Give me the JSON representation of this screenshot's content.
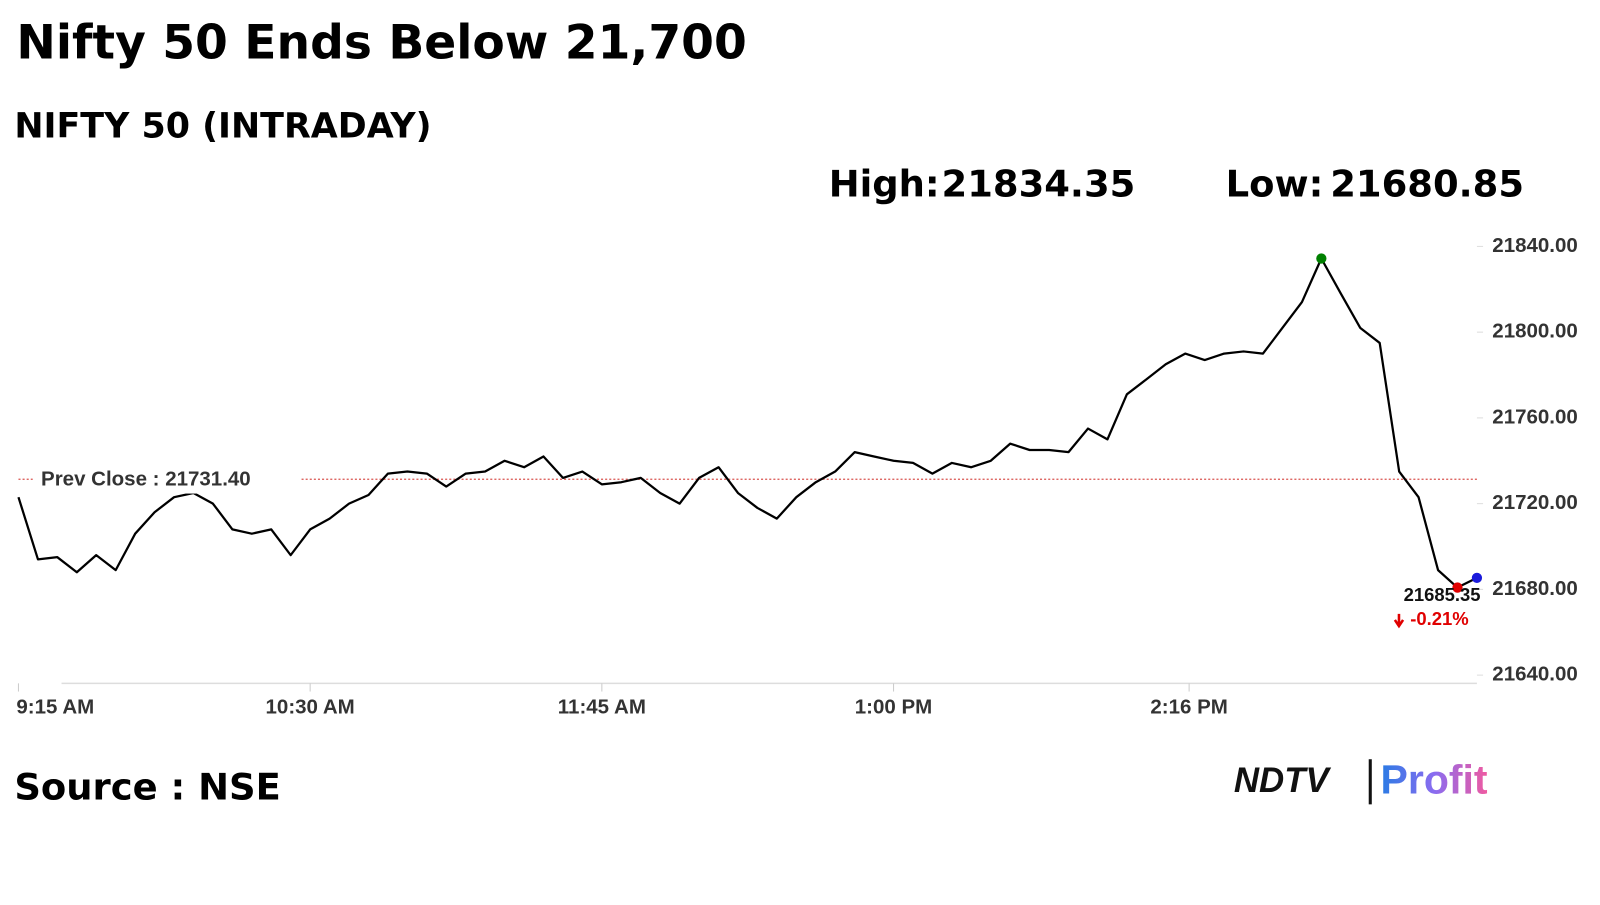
{
  "chart_data": {
    "type": "line",
    "title": "Nifty 50 Ends Below 21,700",
    "subtitle": "NIFTY 50 (INTRADAY)",
    "high_label": "High:",
    "high": 21834.35,
    "low_label": "Low:",
    "low": 21680.85,
    "color": "#000000",
    "high_color": "#008000",
    "low_color": "#e00000",
    "last_color": "#1a1adb",
    "prev_close": {
      "value": 21731.4,
      "label": "Prev Close : 21731.40"
    },
    "prev_close_color": "#d9534f",
    "change": {
      "value": -0.21,
      "label": "-0.21%"
    },
    "change_color": "#e00000",
    "x": [
      "9:15 AM",
      "9:20 AM",
      "9:25 AM",
      "9:30 AM",
      "9:35 AM",
      "9:40 AM",
      "9:45 AM",
      "9:50 AM",
      "9:55 AM",
      "10:00 AM",
      "10:05 AM",
      "10:10 AM",
      "10:15 AM",
      "10:20 AM",
      "10:25 AM",
      "10:30 AM",
      "10:35 AM",
      "10:40 AM",
      "10:45 AM",
      "10:50 AM",
      "10:55 AM",
      "11:00 AM",
      "11:05 AM",
      "11:10 AM",
      "11:15 AM",
      "11:20 AM",
      "11:25 AM",
      "11:30 AM",
      "11:35 AM",
      "11:40 AM",
      "11:45 AM",
      "11:50 AM",
      "11:55 AM",
      "12:00 PM",
      "12:05 PM",
      "12:10 PM",
      "12:15 PM",
      "12:20 PM",
      "12:25 PM",
      "12:30 PM",
      "12:35 PM",
      "12:40 PM",
      "12:45 PM",
      "12:50 PM",
      "12:55 PM",
      "1:00 PM",
      "1:05 PM",
      "1:10 PM",
      "1:15 PM",
      "1:20 PM",
      "1:25 PM",
      "1:30 PM",
      "1:35 PM",
      "1:40 PM",
      "1:45 PM",
      "1:50 PM",
      "1:55 PM",
      "2:00 PM",
      "2:05 PM",
      "2:10 PM",
      "2:15 PM",
      "2:20 PM",
      "2:25 PM",
      "2:30 PM",
      "2:35 PM",
      "2:40 PM",
      "2:45 PM",
      "2:50 PM",
      "2:55 PM",
      "3:00 PM",
      "3:05 PM",
      "3:10 PM",
      "3:15 PM",
      "3:20 PM",
      "3:25 PM",
      "3:30 PM"
    ],
    "values": [
      21723,
      21694,
      21695,
      21688,
      21696,
      21689,
      21706,
      21716,
      21723,
      21725,
      21720,
      21708,
      21706,
      21708,
      21696,
      21708,
      21713,
      21720,
      21724,
      21734,
      21735,
      21734,
      21728,
      21734,
      21735,
      21740,
      21737,
      21742,
      21732,
      21735,
      21729,
      21730,
      21732,
      21725,
      21720,
      21732,
      21737,
      21725,
      21718,
      21713,
      21723,
      21730,
      21735,
      21744,
      21742,
      21740,
      21739,
      21734,
      21739,
      21737,
      21740,
      21748,
      21745,
      21745,
      21744,
      21755,
      21750,
      21771,
      21778,
      21785,
      21790,
      21787,
      21790,
      21791,
      21790,
      21802,
      21814,
      21834.35,
      21818,
      21802,
      21795,
      21735,
      21723,
      21689,
      21680.85,
      21685.35
    ],
    "xlim": [
      "9:15 AM",
      "3:30 PM"
    ],
    "xticks": [
      "9:15 AM",
      "10:30 AM",
      "11:45 AM",
      "1:00 PM",
      "2:16 PM"
    ],
    "ylim": [
      21640,
      21840
    ],
    "yticks": [
      {
        "value": 21840,
        "label": "21840.00"
      },
      {
        "value": 21800,
        "label": "21800.00"
      },
      {
        "value": 21760,
        "label": "21760.00"
      },
      {
        "value": 21720,
        "label": "21720.00"
      },
      {
        "value": 21680,
        "label": "21680.00"
      },
      {
        "value": 21640,
        "label": "21640.00"
      }
    ],
    "source": "Source : NSE",
    "logo_left": "NDTV",
    "logo_right": "Profit"
  }
}
